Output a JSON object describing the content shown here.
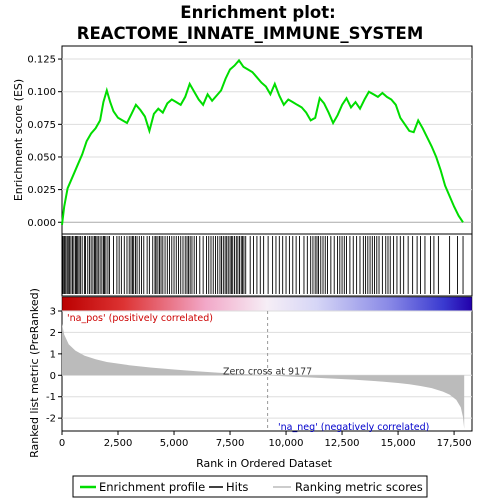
{
  "chart_data": {
    "type": "line",
    "title_line1": "Enrichment plot:",
    "title_line2": "REACTOME_INNATE_IMMUNE_SYSTEM",
    "es_panel": {
      "ylabel": "Enrichment score (ES)",
      "ylim": [
        -0.009,
        0.135
      ],
      "yticks": [
        0.0,
        0.025,
        0.05,
        0.075,
        0.1,
        0.125
      ],
      "ytick_labels": [
        "0.000",
        "0.025",
        "0.050",
        "0.075",
        "0.100",
        "0.125"
      ],
      "series": [
        {
          "name": "Enrichment profile",
          "color": "#00dd00",
          "x": [
            0,
            100,
            250,
            500,
            700,
            900,
            1100,
            1300,
            1500,
            1700,
            1850,
            2000,
            2150,
            2300,
            2500,
            2700,
            2900,
            3100,
            3300,
            3500,
            3700,
            3900,
            4100,
            4300,
            4500,
            4700,
            4900,
            5100,
            5300,
            5500,
            5700,
            5900,
            6100,
            6300,
            6500,
            6700,
            6900,
            7100,
            7300,
            7500,
            7700,
            7900,
            8100,
            8300,
            8500,
            8700,
            8900,
            9100,
            9300,
            9500,
            9700,
            9900,
            10100,
            10300,
            10500,
            10700,
            10900,
            11100,
            11300,
            11500,
            11700,
            11900,
            12100,
            12300,
            12500,
            12700,
            12900,
            13100,
            13300,
            13500,
            13700,
            13900,
            14100,
            14300,
            14500,
            14700,
            14900,
            15100,
            15300,
            15500,
            15700,
            15900,
            16100,
            16300,
            16500,
            16700,
            16900,
            17100,
            17300,
            17500,
            17700,
            17900
          ],
          "y": [
            -0.002,
            0.012,
            0.026,
            0.036,
            0.044,
            0.052,
            0.062,
            0.068,
            0.072,
            0.078,
            0.092,
            0.101,
            0.092,
            0.085,
            0.08,
            0.078,
            0.076,
            0.083,
            0.09,
            0.086,
            0.081,
            0.07,
            0.083,
            0.087,
            0.084,
            0.091,
            0.094,
            0.092,
            0.09,
            0.096,
            0.106,
            0.1,
            0.094,
            0.09,
            0.098,
            0.093,
            0.097,
            0.101,
            0.11,
            0.117,
            0.12,
            0.124,
            0.119,
            0.117,
            0.115,
            0.111,
            0.107,
            0.104,
            0.098,
            0.106,
            0.097,
            0.09,
            0.094,
            0.092,
            0.09,
            0.088,
            0.084,
            0.078,
            0.08,
            0.095,
            0.091,
            0.084,
            0.076,
            0.082,
            0.09,
            0.095,
            0.088,
            0.092,
            0.087,
            0.094,
            0.1,
            0.098,
            0.096,
            0.099,
            0.096,
            0.094,
            0.09,
            0.08,
            0.075,
            0.07,
            0.069,
            0.078,
            0.072,
            0.065,
            0.058,
            0.05,
            0.04,
            0.028,
            0.02,
            0.012,
            0.005,
            0.0
          ]
        }
      ]
    },
    "hits": [
      30,
      80,
      120,
      170,
      230,
      280,
      340,
      400,
      470,
      530,
      600,
      650,
      700,
      760,
      820,
      900,
      1000,
      1050,
      1150,
      1230,
      1300,
      1380,
      1450,
      1500,
      1560,
      1620,
      1700,
      1780,
      1850,
      1900,
      1960,
      2050,
      2120,
      2300,
      2450,
      2550,
      2650,
      2780,
      2900,
      3000,
      3080,
      3150,
      3200,
      3280,
      3350,
      3450,
      3550,
      3650,
      3800,
      3900,
      4050,
      4150,
      4200,
      4280,
      4350,
      4420,
      4500,
      4600,
      4700,
      4800,
      4900,
      5000,
      5100,
      5200,
      5300,
      5400,
      5500,
      5580,
      5650,
      5720,
      5800,
      5900,
      6000,
      6150,
      6300,
      6450,
      6550,
      6650,
      6750,
      6850,
      6950,
      7050,
      7120,
      7200,
      7280,
      7350,
      7420,
      7500,
      7560,
      7620,
      7700,
      7780,
      7850,
      7920,
      8000,
      8060,
      8120,
      8200,
      8400,
      8550,
      8700,
      8850,
      9000,
      9200,
      9400,
      9550,
      9700,
      9850,
      10000,
      10150,
      10300,
      10450,
      10600,
      10800,
      10950,
      11100,
      11200,
      11300,
      11380,
      11450,
      11550,
      11650,
      11750,
      11850,
      12000,
      12150,
      12300,
      12400,
      12500,
      12600,
      12700,
      12850,
      13000,
      13150,
      13300,
      13450,
      13550,
      13650,
      13750,
      13850,
      13950,
      14050,
      14150,
      14300,
      14450,
      14550,
      14650,
      14800,
      14950,
      15100,
      15250,
      15450,
      15650,
      15850,
      16000,
      16200,
      16450,
      16600,
      16800,
      17300,
      17650,
      17900
    ],
    "metric_panel": {
      "ylabel": "Ranked list metric (PreRanked)",
      "ylim": [
        -2.6,
        3.0
      ],
      "yticks": [
        -2,
        -1,
        0,
        1,
        2,
        3
      ],
      "ytick_labels": [
        "-2",
        "-1",
        "0",
        "1",
        "2",
        "3"
      ],
      "x": [
        0,
        100,
        300,
        600,
        1000,
        1500,
        2000,
        3000,
        4000,
        5000,
        6000,
        7000,
        8000,
        9177,
        10000,
        11000,
        12000,
        13000,
        14000,
        15000,
        15500,
        16000,
        16500,
        17000,
        17300,
        17600,
        17800,
        17900,
        17950
      ],
      "values": [
        2.4,
        1.9,
        1.45,
        1.15,
        0.92,
        0.75,
        0.62,
        0.47,
        0.36,
        0.27,
        0.19,
        0.12,
        0.06,
        0.0,
        -0.05,
        -0.1,
        -0.15,
        -0.2,
        -0.27,
        -0.36,
        -0.42,
        -0.5,
        -0.6,
        -0.76,
        -0.9,
        -1.15,
        -1.5,
        -1.95,
        -2.5
      ],
      "pos_label": "'na_pos' (positively correlated)",
      "neg_label": "'na_neg' (negatively correlated)",
      "zero_cross_label": "Zero cross at 9177",
      "zero_cross": 9177
    },
    "xaxis": {
      "label": "Rank in Ordered Dataset",
      "xlim": [
        0,
        18300
      ],
      "xticks": [
        0,
        2500,
        5000,
        7500,
        10000,
        12500,
        15000,
        17500
      ],
      "xtick_labels": [
        "0",
        "2,500",
        "5,000",
        "7,500",
        "10,000",
        "12,500",
        "15,000",
        "17,500"
      ]
    },
    "legend": {
      "placement": "bottom",
      "items": [
        {
          "label": "Enrichment profile",
          "color": "#00dd00"
        },
        {
          "label": "Hits",
          "color": "#000000"
        },
        {
          "label": "Ranking metric scores",
          "color": "#bbbbbb"
        }
      ]
    },
    "colors": {
      "pos_label": "#cc0000",
      "neg_label": "#0000cc",
      "metric_fill": "#bbbbbb",
      "gridline": "#dddddd"
    }
  }
}
